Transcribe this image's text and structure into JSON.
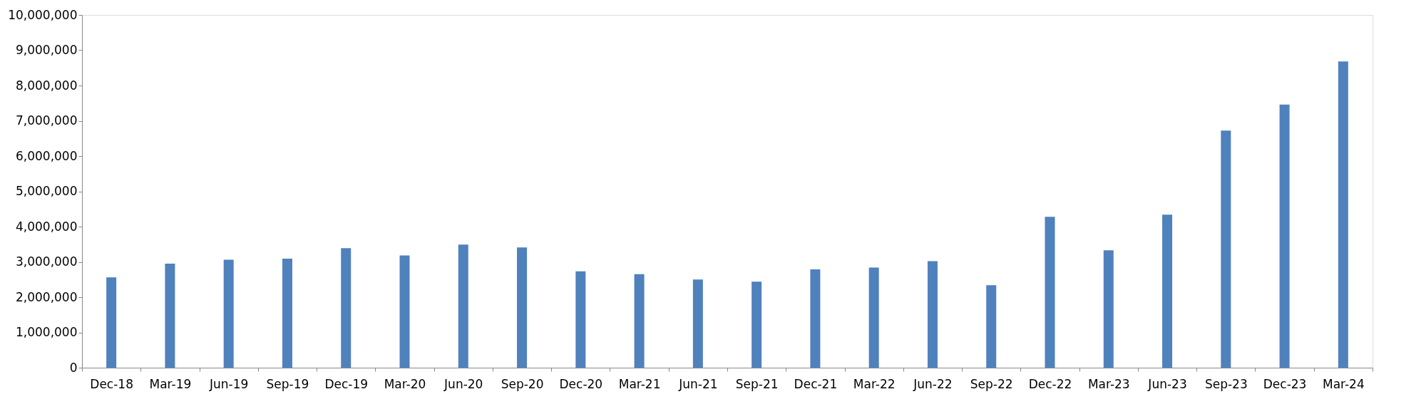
{
  "chart_data": {
    "type": "bar",
    "categories": [
      "Dec-18",
      "Mar-19",
      "Jun-19",
      "Sep-19",
      "Dec-19",
      "Mar-20",
      "Jun-20",
      "Sep-20",
      "Dec-20",
      "Mar-21",
      "Jun-21",
      "Sep-21",
      "Dec-21",
      "Mar-22",
      "Jun-22",
      "Sep-22",
      "Dec-22",
      "Mar-23",
      "Jun-23",
      "Sep-23",
      "Dec-23",
      "Mar-24"
    ],
    "values": [
      2560000,
      2950000,
      3060000,
      3090000,
      3390000,
      3180000,
      3490000,
      3410000,
      2730000,
      2650000,
      2500000,
      2440000,
      2790000,
      2840000,
      3020000,
      2340000,
      4280000,
      3330000,
      4340000,
      6720000,
      7460000,
      8680000
    ],
    "color": "#4f81bd",
    "ylim": [
      0,
      10000000
    ],
    "yticks": [
      {
        "value": 0,
        "label": "0"
      },
      {
        "value": 1000000,
        "label": "1,000,000"
      },
      {
        "value": 2000000,
        "label": "2,000,000"
      },
      {
        "value": 3000000,
        "label": "3,000,000"
      },
      {
        "value": 4000000,
        "label": "4,000,000"
      },
      {
        "value": 5000000,
        "label": "5,000,000"
      },
      {
        "value": 6000000,
        "label": "6,000,000"
      },
      {
        "value": 7000000,
        "label": "7,000,000"
      },
      {
        "value": 8000000,
        "label": "8,000,000"
      },
      {
        "value": 9000000,
        "label": "9,000,000"
      },
      {
        "value": 10000000,
        "label": "10,000,000"
      }
    ],
    "grid": false
  }
}
